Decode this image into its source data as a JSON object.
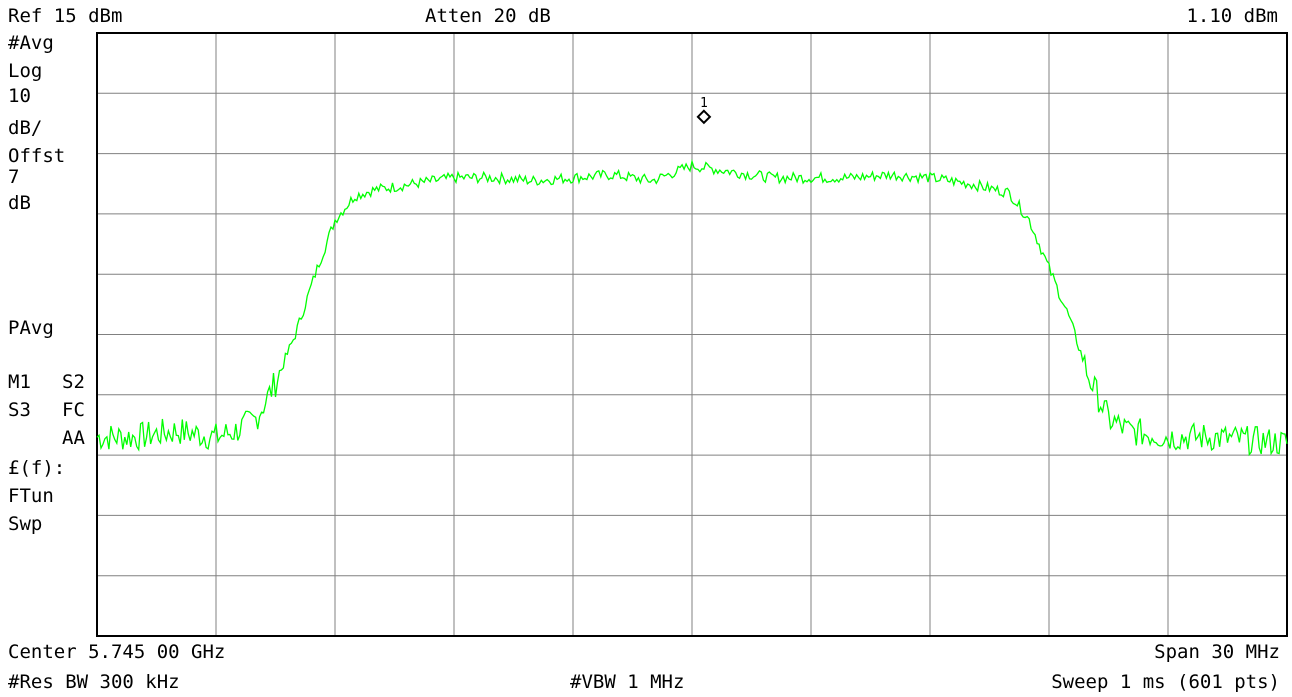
{
  "header": {
    "ref": "Ref 15 dBm",
    "atten": "Atten 20 dB",
    "marker_readout": "1.10 dBm"
  },
  "side_labels": {
    "avg": "#Avg",
    "log": "Log",
    "scale_value": "10",
    "scale_unit": "dB/",
    "offset_label": "Offst",
    "offset_value": "7",
    "offset_unit": "dB",
    "pavg": "PAvg",
    "m1": "M1",
    "s2": "S2",
    "s3": "S3",
    "fc": "FC",
    "aa": "AA",
    "ef": "£(f):",
    "ftun": "FTun",
    "swp": "Swp"
  },
  "footer": {
    "center": "Center 5.745 00 GHz",
    "span": "Span 30 MHz",
    "res_bw": "#Res BW 300 kHz",
    "vbw": "#VBW 1 MHz",
    "sweep": "Sweep 1 ms (601 pts)"
  },
  "colors": {
    "trace": "#00ff00",
    "grid": "#808080",
    "frame": "#000000"
  },
  "chart_data": {
    "type": "line",
    "x_unit": "GHz",
    "y_unit": "dBm",
    "xlim": [
      5.73,
      5.76
    ],
    "ylim": [
      -85,
      15
    ],
    "grid": true,
    "grid_divisions": {
      "x": 10,
      "y": 10
    },
    "series": [
      {
        "x": [
          5.73,
          5.731,
          5.732,
          5.733,
          5.7335,
          5.734,
          5.7345,
          5.735,
          5.7355,
          5.736,
          5.7365,
          5.737,
          5.738,
          5.739,
          5.74,
          5.741,
          5.742,
          5.743,
          5.744,
          5.745,
          5.746,
          5.747,
          5.748,
          5.749,
          5.75,
          5.751,
          5.752,
          5.753,
          5.7535,
          5.754,
          5.7545,
          5.755,
          5.7555,
          5.756,
          5.757,
          5.758,
          5.759,
          5.76
        ],
        "y": [
          -52,
          -52,
          -51,
          -52,
          -51,
          -49,
          -43,
          -35,
          -25,
          -16,
          -12,
          -11,
          -10,
          -9,
          -9,
          -9.5,
          -9,
          -8.5,
          -9.5,
          -7,
          -8,
          -9,
          -9,
          -9,
          -8.5,
          -9,
          -10,
          -11.5,
          -16,
          -24,
          -32,
          -42,
          -49,
          -51,
          -52,
          -52,
          -52.5,
          -53
        ]
      }
    ],
    "markers": [
      {
        "label": "1",
        "x": 5.7453,
        "y": 1.1
      }
    ]
  }
}
